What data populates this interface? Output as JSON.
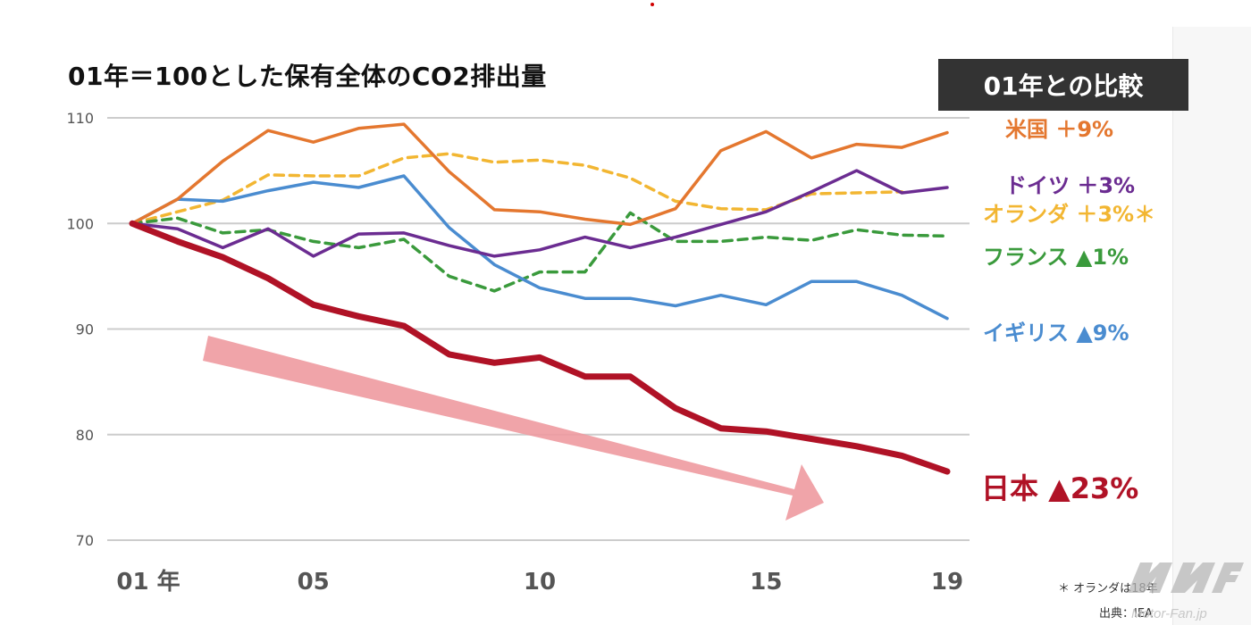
{
  "title": "01年＝100とした保有全体のCO2排出量",
  "compare_header": "01年との比較",
  "footnote": "＊ オランダは18年",
  "source": "出典：IEA",
  "watermark": "Motor-Fan.jp",
  "colors": {
    "usa": "#e4772f",
    "germany": "#6b2c91",
    "netherlands": "#f2b632",
    "france": "#3a9a3c",
    "uk": "#4a8cd0",
    "japan": "#b01226",
    "trend_arrow": "#ee9aa0",
    "grid": "#cccccc"
  },
  "chart_data": {
    "type": "line",
    "title": "01年＝100とした保有全体のCO2排出量",
    "x_tick_labels": [
      "01 年",
      "05",
      "10",
      "15",
      "19"
    ],
    "x_tick_values": [
      2001,
      2005,
      2010,
      2015,
      2019
    ],
    "xlim": [
      2001,
      2019
    ],
    "y_tick_labels": [
      "110",
      "100",
      "90",
      "80",
      "70"
    ],
    "y_tick_values": [
      110,
      100,
      90,
      80,
      70
    ],
    "ylim": [
      70,
      110
    ],
    "grid": "horizontal",
    "x": [
      2001,
      2002,
      2003,
      2004,
      2005,
      2006,
      2007,
      2008,
      2009,
      2010,
      2011,
      2012,
      2013,
      2014,
      2015,
      2016,
      2017,
      2018,
      2019
    ],
    "series": [
      {
        "key": "usa",
        "label": "米国 ＋9%",
        "style": "solid",
        "values": [
          100,
          102.3,
          105.9,
          108.8,
          107.7,
          109.0,
          109.4,
          104.9,
          101.3,
          101.1,
          100.4,
          99.9,
          101.4,
          106.9,
          108.7,
          106.2,
          107.5,
          107.2,
          108.6
        ]
      },
      {
        "key": "germany",
        "label": "ドイツ ＋3%",
        "style": "solid",
        "values": [
          100,
          99.5,
          97.7,
          99.5,
          96.9,
          99.0,
          99.1,
          97.9,
          96.9,
          97.5,
          98.7,
          97.7,
          98.7,
          99.9,
          101.1,
          103.0,
          105.0,
          102.9,
          103.4
        ]
      },
      {
        "key": "netherlands",
        "label": "オランダ ＋3%＊",
        "style": "dashed",
        "values": [
          100,
          101.1,
          102.2,
          104.6,
          104.5,
          104.5,
          106.2,
          106.6,
          105.8,
          106.0,
          105.5,
          104.3,
          102.1,
          101.4,
          101.3,
          102.8,
          102.9,
          103.0,
          null
        ]
      },
      {
        "key": "france",
        "label": "フランス ▲1%",
        "style": "dashed",
        "values": [
          100,
          100.5,
          99.1,
          99.4,
          98.3,
          97.7,
          98.5,
          95.0,
          93.6,
          95.4,
          95.4,
          101.0,
          98.3,
          98.3,
          98.7,
          98.4,
          99.4,
          98.9,
          98.8
        ]
      },
      {
        "key": "uk",
        "label": "イギリス ▲9%",
        "style": "solid",
        "values": [
          100,
          102.3,
          102.1,
          103.1,
          103.9,
          103.4,
          104.5,
          99.6,
          96.1,
          93.9,
          92.9,
          92.9,
          92.2,
          93.2,
          92.3,
          94.5,
          94.5,
          93.2,
          91.0
        ]
      },
      {
        "key": "japan",
        "label": "日本 ▲23%",
        "style": "solid-bold",
        "values": [
          100,
          98.3,
          96.8,
          94.8,
          92.3,
          91.2,
          90.3,
          87.6,
          86.8,
          87.3,
          85.5,
          85.5,
          82.5,
          80.6,
          80.3,
          79.6,
          78.9,
          78.0,
          76.5
        ]
      }
    ]
  }
}
